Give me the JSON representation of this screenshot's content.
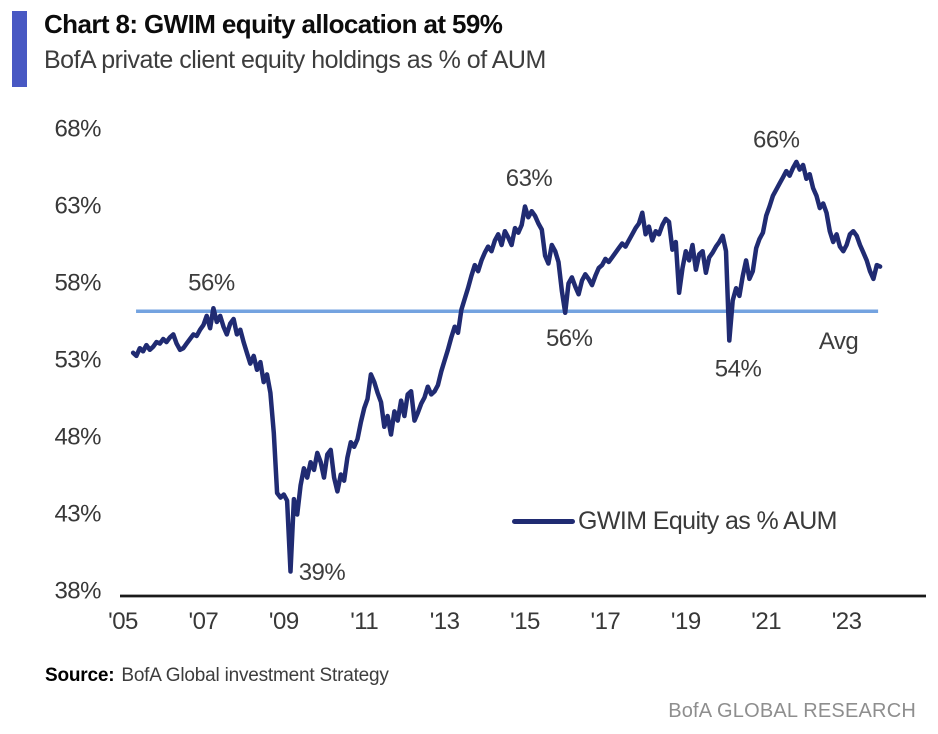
{
  "header": {
    "title": "Chart 8: GWIM equity allocation at 59%",
    "subtitle": "BofA private client equity holdings as % of AUM",
    "accent_color": "#4858c3"
  },
  "chart_data": {
    "type": "line",
    "title": "GWIM equity allocation",
    "xlabel": "",
    "ylabel": "",
    "grid": false,
    "ylim": [
      38,
      68
    ],
    "xlim": [
      2005,
      2025
    ],
    "yticks": [
      {
        "label": "68%",
        "value": 68
      },
      {
        "label": "63%",
        "value": 63
      },
      {
        "label": "58%",
        "value": 58
      },
      {
        "label": "53%",
        "value": 53
      },
      {
        "label": "48%",
        "value": 48
      },
      {
        "label": "43%",
        "value": 43
      },
      {
        "label": "38%",
        "value": 38
      }
    ],
    "xticks": [
      {
        "label": "'05",
        "value": 2005
      },
      {
        "label": "'07",
        "value": 2007
      },
      {
        "label": "'09",
        "value": 2009
      },
      {
        "label": "'11",
        "value": 2011
      },
      {
        "label": "'13",
        "value": 2013
      },
      {
        "label": "'15",
        "value": 2015
      },
      {
        "label": "'17",
        "value": 2017
      },
      {
        "label": "'19",
        "value": 2019
      },
      {
        "label": "'21",
        "value": 2021
      },
      {
        "label": "'23",
        "value": 2023
      }
    ],
    "series": [
      {
        "name": "GWIM Equity as % AUM",
        "color": "#202b72",
        "frequency": "monthly",
        "start_year": 2005,
        "start_month": 4,
        "values": [
          53.4,
          53.2,
          53.7,
          53.5,
          53.9,
          53.6,
          53.8,
          54.1,
          54.0,
          54.3,
          54.1,
          54.4,
          54.6,
          54.0,
          53.6,
          53.7,
          54.0,
          54.3,
          54.6,
          54.5,
          54.9,
          55.2,
          55.8,
          55.0,
          56.3,
          55.4,
          55.8,
          55.1,
          54.6,
          55.3,
          55.6,
          54.6,
          54.9,
          54.1,
          53.4,
          52.7,
          53.2,
          52.3,
          52.8,
          51.5,
          52.0,
          50.8,
          48.2,
          44.3,
          44.0,
          44.2,
          43.8,
          39.2,
          43.9,
          42.9,
          44.8,
          45.9,
          45.3,
          46.3,
          45.8,
          46.9,
          46.3,
          45.3,
          46.8,
          47.1,
          45.3,
          44.4,
          45.5,
          45.1,
          46.6,
          47.6,
          47.3,
          47.8,
          48.9,
          49.8,
          50.4,
          52.0,
          51.5,
          50.8,
          50.2,
          48.6,
          49.3,
          48.1,
          49.6,
          49.0,
          50.3,
          49.3,
          50.7,
          50.9,
          49.0,
          49.5,
          50.1,
          50.5,
          51.2,
          50.7,
          50.9,
          51.3,
          52.2,
          52.9,
          53.6,
          54.4,
          55.1,
          54.7,
          56.2,
          56.9,
          57.6,
          58.4,
          59.1,
          58.7,
          59.4,
          59.9,
          60.3,
          60.0,
          60.7,
          61.1,
          60.4,
          61.3,
          60.9,
          60.4,
          61.5,
          61.2,
          61.7,
          62.9,
          62.2,
          62.6,
          62.3,
          61.8,
          61.4,
          59.7,
          59.2,
          60.4,
          60.0,
          59.3,
          57.4,
          56.0,
          57.9,
          58.3,
          57.7,
          57.2,
          58.1,
          58.5,
          58.2,
          57.8,
          58.4,
          58.9,
          59.1,
          59.5,
          59.3,
          59.6,
          59.9,
          60.2,
          60.5,
          60.3,
          60.7,
          61.1,
          61.5,
          61.8,
          62.5,
          61.1,
          61.6,
          60.7,
          61.3,
          61.1,
          61.7,
          62.1,
          61.9,
          60.1,
          60.6,
          57.3,
          58.9,
          60.0,
          59.4,
          60.4,
          58.8,
          59.8,
          60.0,
          58.6,
          59.6,
          59.9,
          60.3,
          60.6,
          61.0,
          60.0,
          54.2,
          56.8,
          57.6,
          57.1,
          58.4,
          59.4,
          58.2,
          58.7,
          60.2,
          60.8,
          61.2,
          62.3,
          62.9,
          63.6,
          64.0,
          64.4,
          64.8,
          65.2,
          64.9,
          65.4,
          65.8,
          65.3,
          65.6,
          64.7,
          65.0,
          64.1,
          63.6,
          62.8,
          63.1,
          62.5,
          61.3,
          60.6,
          61.1,
          60.3,
          60.0,
          60.4,
          61.1,
          61.3,
          61.0,
          60.4,
          59.9,
          59.4,
          58.7,
          58.2,
          59.1,
          59.0
        ]
      }
    ],
    "average_line": {
      "label": "Avg",
      "value": 56.1,
      "color": "#74a3e0"
    },
    "annotations": [
      {
        "text": "56%",
        "year": 2007.2,
        "pct": 58.0
      },
      {
        "text": "39%",
        "year": 2009.95,
        "pct": 39.2
      },
      {
        "text": "63%",
        "year": 2015.1,
        "pct": 64.8
      },
      {
        "text": "56%",
        "year": 2016.1,
        "pct": 54.4
      },
      {
        "text": "66%",
        "year": 2021.25,
        "pct": 67.3
      },
      {
        "text": "54%",
        "year": 2020.3,
        "pct": 52.4
      },
      {
        "text": "Avg",
        "year": 2022.8,
        "pct": 54.2
      }
    ],
    "legend": {
      "entries": [
        "GWIM Equity as % AUM"
      ],
      "position": "inside-bottom-right"
    }
  },
  "footer": {
    "source_label": "Source:",
    "source_text": "BofA Global investment Strategy",
    "brand_text": "BofA GLOBAL RESEARCH"
  }
}
